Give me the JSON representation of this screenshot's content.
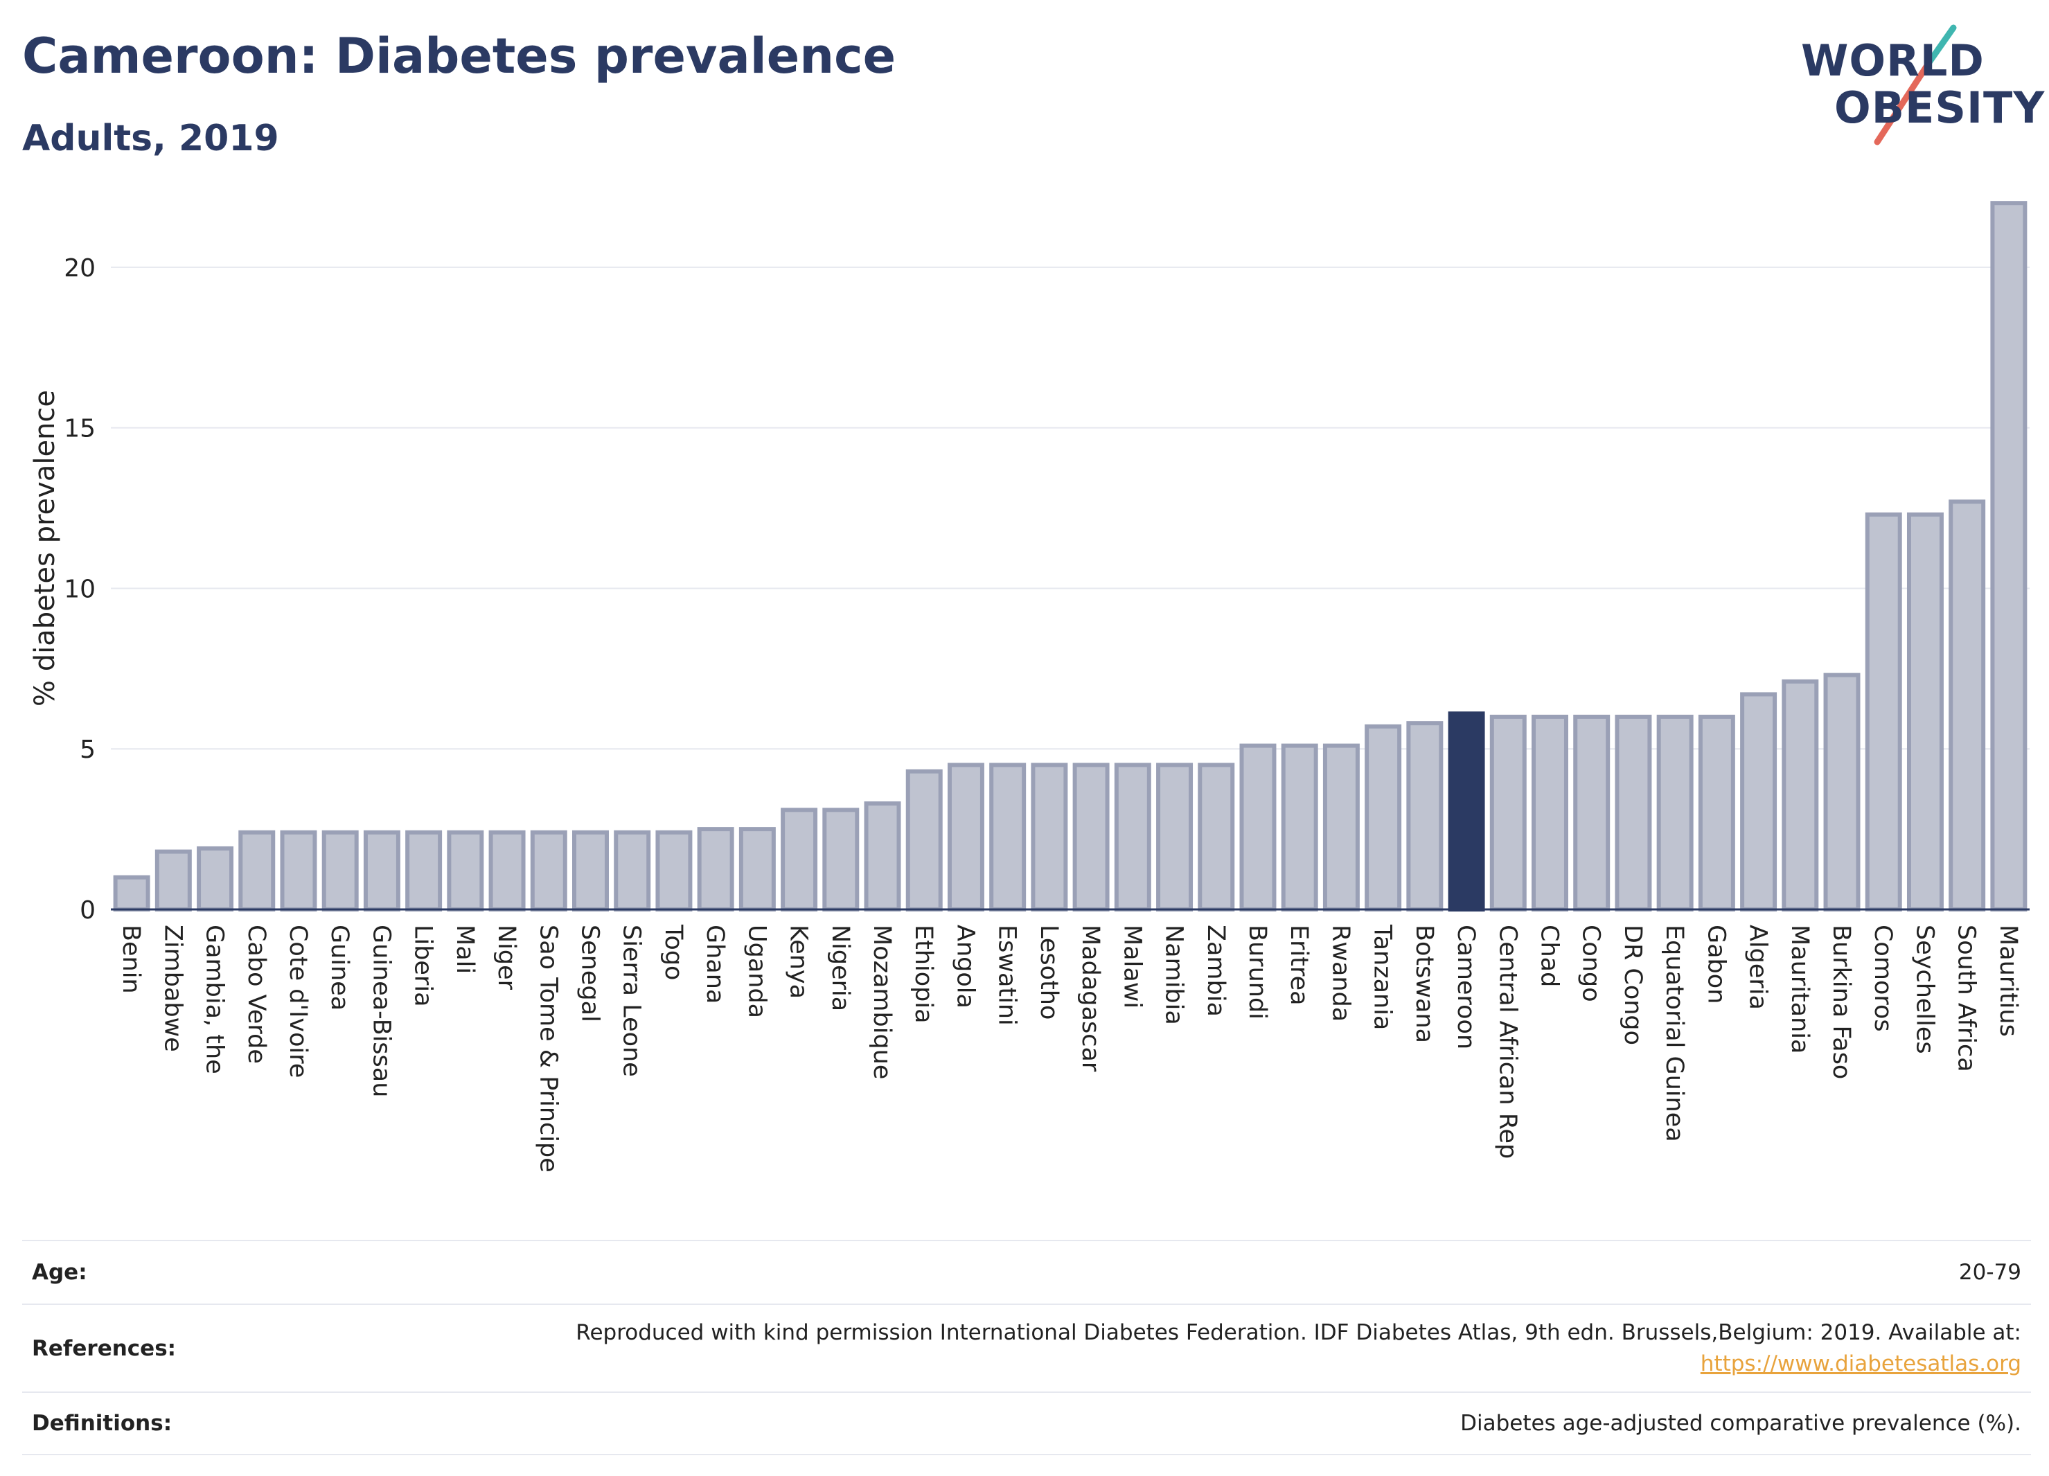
{
  "header": {
    "title": "Cameroon: Diabetes prevalence",
    "subtitle": "Adults, 2019"
  },
  "logo": {
    "line1": "WORLD",
    "line2": "OBESITY",
    "colors": [
      "#2b3a63",
      "#e4685a",
      "#3fb6b0"
    ]
  },
  "chart_data": {
    "type": "bar",
    "title": "Cameroon: Diabetes prevalence",
    "subtitle": "Adults, 2019",
    "xlabel": "",
    "ylabel": "% diabetes prevalence",
    "ylim": [
      0,
      22.5
    ],
    "yticks": [
      0,
      5,
      10,
      15,
      20
    ],
    "grid": true,
    "highlight": "Cameroon",
    "colors": {
      "bar": "#bfc3d0",
      "bar_border": "#9aa0b6",
      "highlight": "#2b3a63",
      "grid": "#e6e8ef"
    },
    "categories": [
      "Benin",
      "Zimbabwe",
      "Gambia, the",
      "Cabo Verde",
      "Cote d'Ivoire",
      "Guinea",
      "Guinea-Bissau",
      "Liberia",
      "Mali",
      "Niger",
      "Sao Tome & Principe",
      "Senegal",
      "Sierra Leone",
      "Togo",
      "Ghana",
      "Uganda",
      "Kenya",
      "Nigeria",
      "Mozambique",
      "Ethiopia",
      "Angola",
      "Eswatini",
      "Lesotho",
      "Madagascar",
      "Malawi",
      "Namibia",
      "Zambia",
      "Burundi",
      "Eritrea",
      "Rwanda",
      "Tanzania",
      "Botswana",
      "Cameroon",
      "Central African Rep",
      "Chad",
      "Congo",
      "DR Congo",
      "Equatorial Guinea",
      "Gabon",
      "Algeria",
      "Mauritania",
      "Burkina Faso",
      "Comoros",
      "Seychelles",
      "South Africa",
      "Mauritius"
    ],
    "values": [
      1.0,
      1.8,
      1.9,
      2.4,
      2.4,
      2.4,
      2.4,
      2.4,
      2.4,
      2.4,
      2.4,
      2.4,
      2.4,
      2.4,
      2.5,
      2.5,
      3.1,
      3.1,
      3.3,
      4.3,
      4.5,
      4.5,
      4.5,
      4.5,
      4.5,
      4.5,
      4.5,
      5.1,
      5.1,
      5.1,
      5.7,
      5.8,
      6.1,
      6.0,
      6.0,
      6.0,
      6.0,
      6.0,
      6.0,
      6.7,
      7.1,
      7.3,
      12.3,
      12.3,
      12.7,
      22.0
    ]
  },
  "info": {
    "age_label": "Age:",
    "age_value": "20-79",
    "references_label": "References:",
    "references_text": "Reproduced with kind permission International Diabetes Federation. IDF Diabetes Atlas, 9th edn. Brussels,Belgium: 2019. Available at:",
    "references_link": "https://www.diabetesatlas.org",
    "definitions_label": "Definitions:",
    "definitions_value": "Diabetes age-adjusted comparative prevalence (%)."
  }
}
